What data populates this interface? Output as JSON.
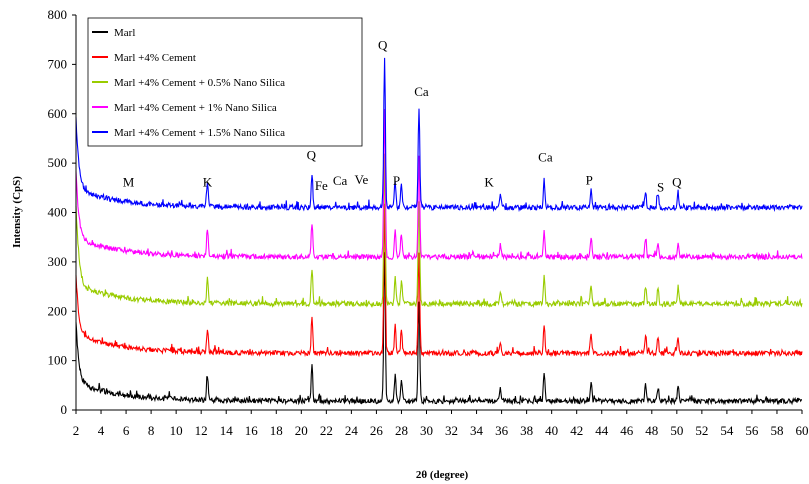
{
  "chart_data": {
    "type": "line",
    "xlabel": "2θ (degree)",
    "ylabel": "Intensity (CpS)",
    "xlim": [
      2,
      60
    ],
    "ylim": [
      0,
      800
    ],
    "xticks": [
      2,
      4,
      6,
      8,
      10,
      12,
      14,
      16,
      18,
      20,
      22,
      24,
      26,
      28,
      30,
      32,
      34,
      36,
      38,
      40,
      42,
      44,
      46,
      48,
      50,
      52,
      54,
      56,
      58,
      60
    ],
    "yticks": [
      0,
      100,
      200,
      300,
      400,
      500,
      600,
      700,
      800
    ],
    "grid": false,
    "legend_position": "top-left",
    "peaks": [
      {
        "x": 12.5,
        "h": 50
      },
      {
        "x": 20.85,
        "h": 70
      },
      {
        "x": 26.65,
        "h": 300
      },
      {
        "x": 27.5,
        "h": 55
      },
      {
        "x": 28.0,
        "h": 45
      },
      {
        "x": 29.4,
        "h": 205
      },
      {
        "x": 35.9,
        "h": 25
      },
      {
        "x": 39.4,
        "h": 55
      },
      {
        "x": 43.15,
        "h": 40
      },
      {
        "x": 47.5,
        "h": 35
      },
      {
        "x": 48.5,
        "h": 28
      },
      {
        "x": 50.1,
        "h": 30
      }
    ],
    "series": [
      {
        "name": "Marl",
        "color": "#000000",
        "baseline": 18,
        "start": 145
      },
      {
        "name": "Marl +4% Cement",
        "color": "#ff0000",
        "baseline": 115,
        "start": 240
      },
      {
        "name": "Marl +4% Cement + 0.5% Nano Silica",
        "color": "#99cc00",
        "baseline": 215,
        "start": 380
      },
      {
        "name": "Marl +4% Cement + 1% Nano Silica",
        "color": "#ff00ff",
        "baseline": 310,
        "start": 450
      },
      {
        "name": "Marl +4% Cement + 1.5% Nano Silica",
        "color": "#0000ff",
        "baseline": 410,
        "start": 560
      }
    ],
    "annotations": [
      {
        "text": "M",
        "x": 6.2,
        "y": 453
      },
      {
        "text": "K",
        "x": 12.5,
        "y": 453
      },
      {
        "text": "Q",
        "x": 20.8,
        "y": 507
      },
      {
        "text": "Fe",
        "x": 21.6,
        "y": 446
      },
      {
        "text": "Ca",
        "x": 23.1,
        "y": 456
      },
      {
        "text": "Ve",
        "x": 24.8,
        "y": 458
      },
      {
        "text": "Q",
        "x": 26.5,
        "y": 730
      },
      {
        "text": "P",
        "x": 27.6,
        "y": 456
      },
      {
        "text": "Ca",
        "x": 29.6,
        "y": 636
      },
      {
        "text": "K",
        "x": 35.0,
        "y": 453
      },
      {
        "text": "Ca",
        "x": 39.5,
        "y": 503
      },
      {
        "text": "P",
        "x": 43.0,
        "y": 457
      },
      {
        "text": "S",
        "x": 48.7,
        "y": 443
      },
      {
        "text": "Q",
        "x": 50.0,
        "y": 453
      }
    ]
  }
}
